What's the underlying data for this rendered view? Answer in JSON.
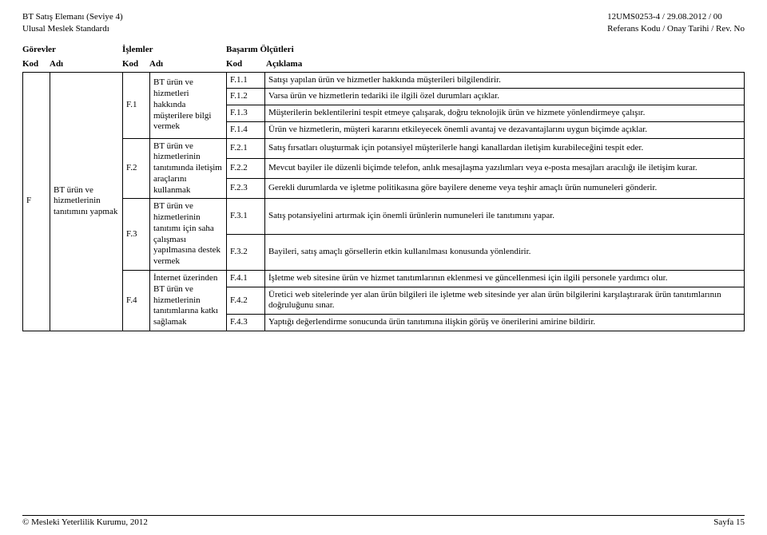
{
  "header": {
    "left_line1": "BT Satış Elemanı (Seviye 4)",
    "left_line2": "Ulusal Meslek Standardı",
    "right_line1": "12UMS0253-4 / 29.08.2012    / 00",
    "right_line2": "Referans Kodu / Onay Tarihi / Rev. No"
  },
  "section": {
    "gorevler": "Görevler",
    "islemler": "İşlemler",
    "basarim": "Başarım Ölçütleri"
  },
  "sub": {
    "kod": "Kod",
    "adi": "Adı",
    "aciklama": "Açıklama"
  },
  "gorev": {
    "kod": "F",
    "adi": "BT ürün ve hizmetlerinin tanıtımını yapmak"
  },
  "islemler": {
    "f1": {
      "kod": "F.1",
      "adi": "BT ürün ve hizmetleri hakkında müşterilere bilgi vermek"
    },
    "f2": {
      "kod": "F.2",
      "adi": "BT ürün ve hizmetlerinin tanıtımında iletişim araçlarını kullanmak"
    },
    "f3": {
      "kod": "F.3",
      "adi": "BT ürün ve hizmetlerinin tanıtımı için saha çalışması yapılmasına destek vermek"
    },
    "f4": {
      "kod": "F.4",
      "adi": "İnternet üzerinden BT ürün ve hizmetlerinin tanıtımlarına katkı sağlamak"
    }
  },
  "olcut": {
    "f11": {
      "kod": "F.1.1",
      "txt": "Satışı yapılan ürün ve hizmetler hakkında müşterileri bilgilendirir."
    },
    "f12": {
      "kod": "F.1.2",
      "txt": "Varsa ürün ve hizmetlerin tedariki ile ilgili özel durumları açıklar."
    },
    "f13": {
      "kod": "F.1.3",
      "txt": "Müşterilerin beklentilerini tespit etmeye çalışarak, doğru teknolojik ürün ve hizmete yönlendirmeye çalışır."
    },
    "f14": {
      "kod": "F.1.4",
      "txt": "Ürün ve hizmetlerin, müşteri kararını etkileyecek önemli avantaj ve dezavantajlarını uygun biçimde açıklar."
    },
    "f21": {
      "kod": "F.2.1",
      "txt": "Satış fırsatları oluşturmak için potansiyel müşterilerle hangi kanallardan iletişim kurabileceğini tespit eder."
    },
    "f22": {
      "kod": "F.2.2",
      "txt": "Mevcut bayiler ile düzenli biçimde telefon, anlık mesajlaşma yazılımları veya e-posta mesajları aracılığı ile iletişim kurar."
    },
    "f23": {
      "kod": "F.2.3",
      "txt": "Gerekli durumlarda ve işletme politikasına göre bayilere deneme veya teşhir amaçlı ürün numuneleri gönderir."
    },
    "f31": {
      "kod": "F.3.1",
      "txt": "Satış potansiyelini artırmak için önemli ürünlerin numuneleri ile tanıtımını yapar."
    },
    "f32": {
      "kod": "F.3.2",
      "txt": "Bayileri, satış amaçlı görsellerin etkin kullanılması konusunda yönlendirir."
    },
    "f41": {
      "kod": "F.4.1",
      "txt": "İşletme web sitesine ürün ve hizmet tanıtımlarının eklenmesi ve güncellenmesi için ilgili personele yardımcı olur."
    },
    "f42": {
      "kod": "F.4.2",
      "txt": "Üretici web sitelerinde yer alan ürün bilgileri ile işletme web sitesinde yer alan ürün bilgilerini karşılaştırarak ürün tanıtımlarının doğruluğunu sınar."
    },
    "f43": {
      "kod": "F.4.3",
      "txt": "Yaptığı değerlendirme sonucunda ürün tanıtımına ilişkin görüş ve önerilerini amirine bildirir."
    }
  },
  "footer": {
    "left": "© Mesleki Yeterlilik Kurumu, 2012",
    "right": "Sayfa 15"
  }
}
